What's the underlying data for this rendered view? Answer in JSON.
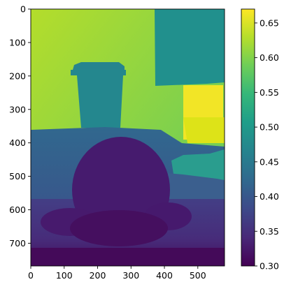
{
  "chart_data": {
    "type": "heatmap",
    "title": "",
    "xlabel": "",
    "ylabel": "",
    "colormap": "viridis",
    "image_width": 580,
    "image_height": 768,
    "x_ticks": [
      0,
      100,
      200,
      300,
      400,
      500
    ],
    "y_ticks": [
      0,
      100,
      200,
      300,
      400,
      500,
      600,
      700
    ],
    "colorbar": {
      "range": [
        0.3,
        0.67
      ],
      "ticks": [
        0.3,
        0.35,
        0.4,
        0.45,
        0.5,
        0.55,
        0.6,
        0.65
      ],
      "tick_labels": [
        "0.30",
        "0.35",
        "0.40",
        "0.45",
        "0.50",
        "0.55",
        "0.60",
        "0.65"
      ]
    },
    "regions": [
      {
        "name": "background wall",
        "value_range": [
          0.57,
          0.62
        ]
      },
      {
        "name": "upper-right panel",
        "value": 0.5
      },
      {
        "name": "cup",
        "value": 0.47
      },
      {
        "name": "bright box",
        "value": 0.66
      },
      {
        "name": "table surface",
        "value_range": [
          0.4,
          0.44
        ]
      },
      {
        "name": "round object",
        "value": 0.34
      },
      {
        "name": "right-side objects",
        "value_range": [
          0.44,
          0.49
        ]
      },
      {
        "name": "foreground",
        "value_range": [
          0.3,
          0.37
        ]
      }
    ],
    "colors": {
      "viridis_stops": [
        "#440154",
        "#482878",
        "#3e4989",
        "#31688e",
        "#26828e",
        "#1f9e89",
        "#35b779",
        "#6ece58",
        "#b5de2b",
        "#fde725"
      ]
    }
  }
}
